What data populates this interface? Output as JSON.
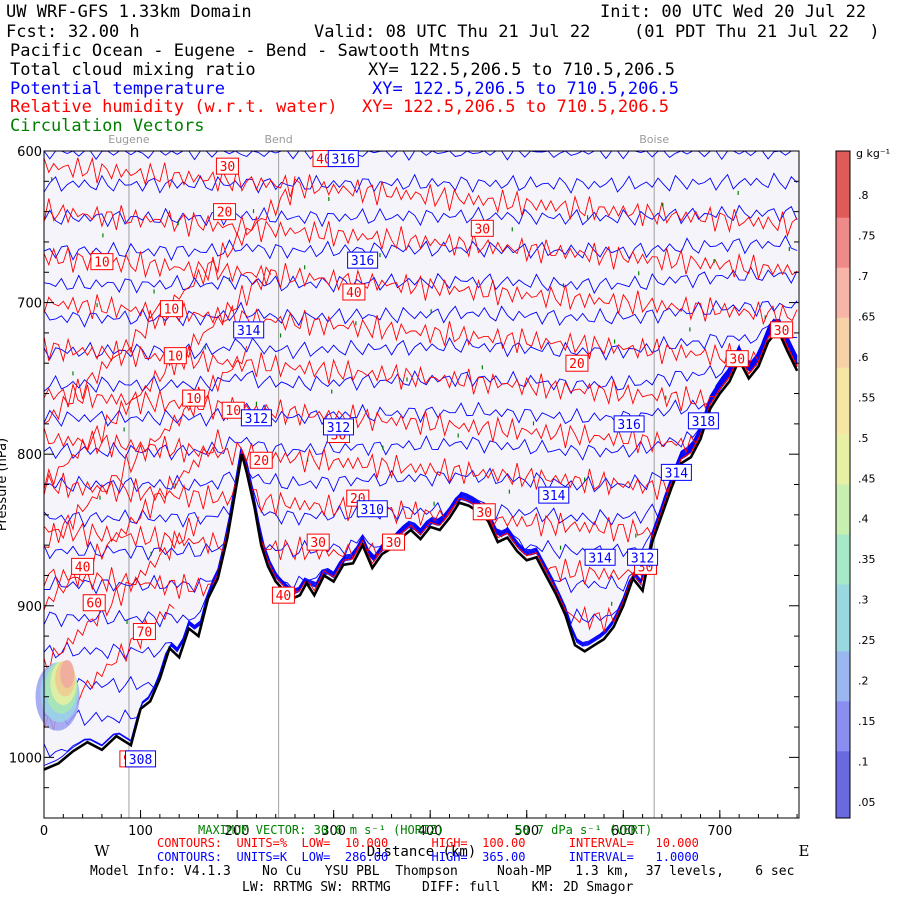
{
  "header": {
    "model": "UW WRF-GFS 1.33km Domain",
    "init": "Init: 00 UTC Wed 20 Jul 22",
    "fcst_label": "Fcst:",
    "fcst_value": "32.00 h",
    "valid": "Valid: 08 UTC Thu 21 Jul 22",
    "valid_local": "(01 PDT Thu 21 Jul 22  )",
    "section": "Pacific Ocean - Eugene - Bend - Sawtooth Mtns",
    "fields": [
      {
        "name": "Total cloud mixing ratio",
        "xy": "XY= 122.5,206.5 to 710.5,206.5",
        "color": "#000000"
      },
      {
        "name": "Potential temperature",
        "xy": "XY= 122.5,206.5 to 710.5,206.5",
        "color": "#0000ff"
      },
      {
        "name": "Relative humidity (w.r.t. water)",
        "xy": "XY= 122.5,206.5 to 710.5,206.5",
        "color": "#ff0000"
      },
      {
        "name": "Circulation Vectors",
        "xy": "",
        "color": "#008000"
      }
    ]
  },
  "chart_data": {
    "type": "cross-section",
    "cities": [
      {
        "name": "Eugene",
        "x": 88
      },
      {
        "name": "Bend",
        "x": 243
      },
      {
        "name": "Boise",
        "x": 632
      }
    ],
    "x_ticks": [
      0,
      100,
      200,
      300,
      400,
      500,
      600,
      700
    ],
    "xlim": [
      0,
      782
    ],
    "xlabel": "Distance (km)",
    "x_left_end": "W",
    "x_right_end": "E",
    "y_ticks": [
      {
        "value": 600,
        "label": "600"
      },
      {
        "value": 700,
        "label": "700"
      },
      {
        "value": 800,
        "label": "800"
      },
      {
        "value": 900,
        "label": "900"
      },
      {
        "value": 1000,
        "label": "1000"
      }
    ],
    "ylim": [
      600,
      1040
    ],
    "ylabel": "Pressure (hPa)",
    "terrain": [
      [
        0,
        1008
      ],
      [
        15,
        1004
      ],
      [
        30,
        996
      ],
      [
        45,
        990
      ],
      [
        60,
        995
      ],
      [
        75,
        986
      ],
      [
        90,
        992
      ],
      [
        100,
        968
      ],
      [
        110,
        963
      ],
      [
        120,
        948
      ],
      [
        130,
        928
      ],
      [
        140,
        934
      ],
      [
        150,
        915
      ],
      [
        160,
        920
      ],
      [
        170,
        895
      ],
      [
        180,
        882
      ],
      [
        190,
        855
      ],
      [
        200,
        818
      ],
      [
        205,
        800
      ],
      [
        210,
        812
      ],
      [
        218,
        835
      ],
      [
        225,
        860
      ],
      [
        232,
        874
      ],
      [
        240,
        884
      ],
      [
        250,
        891
      ],
      [
        258,
        895
      ],
      [
        265,
        893
      ],
      [
        272,
        885
      ],
      [
        280,
        893
      ],
      [
        290,
        880
      ],
      [
        300,
        884
      ],
      [
        310,
        873
      ],
      [
        320,
        872
      ],
      [
        330,
        860
      ],
      [
        340,
        875
      ],
      [
        350,
        866
      ],
      [
        360,
        862
      ],
      [
        370,
        855
      ],
      [
        380,
        850
      ],
      [
        390,
        856
      ],
      [
        400,
        848
      ],
      [
        410,
        850
      ],
      [
        420,
        842
      ],
      [
        430,
        832
      ],
      [
        440,
        834
      ],
      [
        450,
        838
      ],
      [
        460,
        844
      ],
      [
        470,
        858
      ],
      [
        480,
        855
      ],
      [
        490,
        864
      ],
      [
        500,
        870
      ],
      [
        510,
        868
      ],
      [
        520,
        880
      ],
      [
        530,
        892
      ],
      [
        540,
        906
      ],
      [
        550,
        926
      ],
      [
        560,
        930
      ],
      [
        570,
        926
      ],
      [
        580,
        922
      ],
      [
        590,
        914
      ],
      [
        600,
        900
      ],
      [
        610,
        882
      ],
      [
        620,
        890
      ],
      [
        630,
        858
      ],
      [
        640,
        840
      ],
      [
        650,
        822
      ],
      [
        660,
        806
      ],
      [
        670,
        802
      ],
      [
        680,
        790
      ],
      [
        690,
        770
      ],
      [
        700,
        760
      ],
      [
        710,
        752
      ],
      [
        720,
        738
      ],
      [
        730,
        750
      ],
      [
        740,
        742
      ],
      [
        750,
        726
      ],
      [
        760,
        718
      ],
      [
        770,
        732
      ],
      [
        780,
        745
      ]
    ],
    "theta_labels": [
      {
        "x": 310,
        "p": 605,
        "text": "316"
      },
      {
        "x": 330,
        "p": 672,
        "text": "316"
      },
      {
        "x": 212,
        "p": 718,
        "text": "314"
      },
      {
        "x": 220,
        "p": 776,
        "text": "312"
      },
      {
        "x": 305,
        "p": 782,
        "text": "312"
      },
      {
        "x": 340,
        "p": 836,
        "text": "310"
      },
      {
        "x": 606,
        "p": 780,
        "text": "316"
      },
      {
        "x": 683,
        "p": 778,
        "text": "318"
      },
      {
        "x": 655,
        "p": 812,
        "text": "314"
      },
      {
        "x": 528,
        "p": 827,
        "text": "314"
      },
      {
        "x": 576,
        "p": 868,
        "text": "314"
      },
      {
        "x": 620,
        "p": 868,
        "text": "312"
      },
      {
        "x": 100,
        "p": 1001,
        "text": "308"
      }
    ],
    "rh_labels": [
      {
        "x": 190,
        "p": 610,
        "text": "30"
      },
      {
        "x": 290,
        "p": 605,
        "text": "40"
      },
      {
        "x": 187,
        "p": 640,
        "text": "20"
      },
      {
        "x": 454,
        "p": 651,
        "text": "30"
      },
      {
        "x": 60,
        "p": 673,
        "text": "10"
      },
      {
        "x": 321,
        "p": 693,
        "text": "40"
      },
      {
        "x": 132,
        "p": 704,
        "text": "10"
      },
      {
        "x": 136,
        "p": 735,
        "text": "10"
      },
      {
        "x": 155,
        "p": 763,
        "text": "10"
      },
      {
        "x": 196,
        "p": 771,
        "text": "10"
      },
      {
        "x": 552,
        "p": 740,
        "text": "20"
      },
      {
        "x": 305,
        "p": 787,
        "text": "30"
      },
      {
        "x": 225,
        "p": 804,
        "text": "20"
      },
      {
        "x": 325,
        "p": 829,
        "text": "20"
      },
      {
        "x": 284,
        "p": 858,
        "text": "30"
      },
      {
        "x": 362,
        "p": 858,
        "text": "30"
      },
      {
        "x": 456,
        "p": 838,
        "text": "30"
      },
      {
        "x": 248,
        "p": 893,
        "text": "40"
      },
      {
        "x": 40,
        "p": 874,
        "text": "40"
      },
      {
        "x": 52,
        "p": 898,
        "text": "60"
      },
      {
        "x": 104,
        "p": 917,
        "text": "70"
      },
      {
        "x": 623,
        "p": 874,
        "text": "30"
      },
      {
        "x": 718,
        "p": 737,
        "text": "30"
      },
      {
        "x": 764,
        "p": 718,
        "text": "30"
      },
      {
        "x": 90,
        "p": 1001,
        "text": "90"
      }
    ],
    "colorbar": {
      "unit": "g kg⁻¹",
      "labels": [
        ".8",
        ".75",
        ".7",
        ".65",
        ".6",
        ".55",
        ".5",
        ".45",
        ".4",
        ".35",
        ".3",
        ".25",
        ".2",
        ".15",
        ".1",
        ".05"
      ]
    }
  },
  "footer": {
    "max_vector": "MAXIMUM VECTOR: 30.6 m s⁻¹ (HORIZ)",
    "max_vector_vert": "50.7 dPa s⁻¹ (VERT)",
    "contours_rh": "CONTOURS:  UNITS=%  LOW=  10.000      HIGH=  100.00      INTERVAL=   10.000",
    "contours_theta": "CONTOURS:  UNITS=K  LOW=  286.00      HIGH=  365.00      INTERVAL=   1.0000",
    "model_info": "Model Info: V4.1.3    No Cu   YSU PBL  Thompson     Noah-MP   1.3 km,  37 levels,    6 sec",
    "model_info2": "LW: RRTMG SW: RRTMG    DIFF: full    KM: 2D Smagor"
  },
  "colors": {
    "theta": "#0000ff",
    "rh": "#ff0000",
    "terrain": "#000000",
    "vectors": "#008000",
    "fill": "#f5f4fa"
  }
}
